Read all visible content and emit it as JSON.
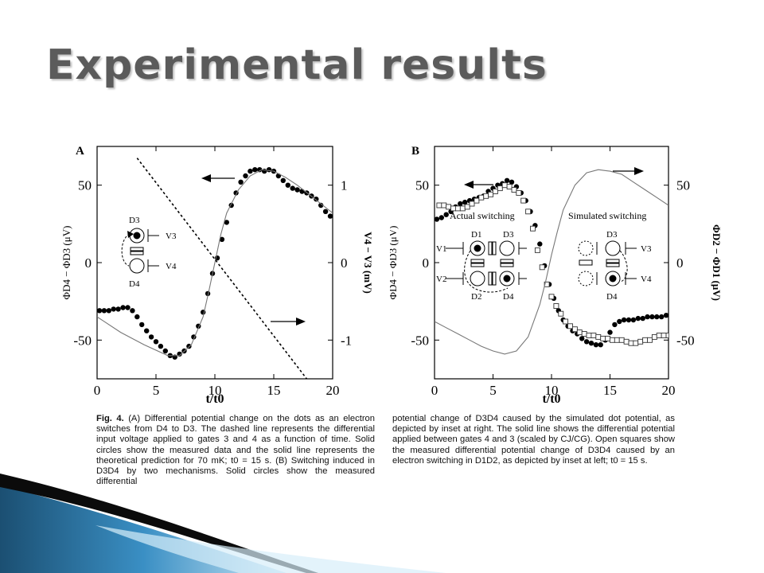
{
  "slide": {
    "title": "Experimental results"
  },
  "caption": {
    "left_label": "Fig. 4.",
    "left_text": " (A) Differential potential change on the dots as an electron switches from D4 to D3. The dashed line represents the differential input voltage applied to gates 3 and 4 as a function of time. Solid circles show the measured data and the solid line represents the theoretical prediction for 70 mK; t0 = 15 s. (B) Switching induced in D3D4 by two mechanisms. Solid circles show the measured differential",
    "right_text": "potential change of D3D4 caused by the simulated dot potential, as depicted by inset at right. The solid line shows the differential potential applied between gates 4 and 3 (scaled by CJ/CG). Open squares show the measured differential potential change of D3D4 caused by an electron switching in D1D2, as depicted by inset at left; t0 = 15 s."
  },
  "panels": {
    "a": {
      "letter": "A",
      "ylabel_left": "ΦD4 − ΦD3 (μV)",
      "ylabel_right": "V4 − V3 (mV)",
      "xlabel": "t/t0",
      "inset": {
        "d3": "D3",
        "d4": "D4",
        "v3": "V3",
        "v4": "V4"
      }
    },
    "b": {
      "letter": "B",
      "ylabel_left": "ΦD4 − ΦD3 (μV)",
      "ylabel_right": "ΦD2 − ΦD1 (μV)",
      "xlabel": "t/t0",
      "annotations": [
        "Actual switching",
        "Simulated switching"
      ],
      "inset_left": {
        "d1": "D1",
        "d2": "D2",
        "d3": "D3",
        "d4": "D4",
        "v1": "V1",
        "v2": "V2"
      },
      "inset_right": {
        "d3": "D3",
        "d4": "D4",
        "v3": "V3",
        "v4": "V4"
      }
    }
  },
  "chart_data": [
    {
      "panel": "A",
      "type": "scatter",
      "xlabel": "t/t0",
      "ylabel": "ΦD4 − ΦD3 (μV)",
      "y2label": "V4 − V3 (mV)",
      "xlim": [
        0,
        20
      ],
      "ylim": [
        -75,
        75
      ],
      "y2lim": [
        -1.5,
        1.5
      ],
      "x_ticks": [
        0,
        5,
        10,
        15,
        20
      ],
      "y_ticks": [
        -50,
        0,
        50
      ],
      "y2_ticks": [
        -1,
        0,
        1
      ],
      "series": [
        {
          "role": "measured",
          "style": "solid-circles",
          "x": [
            0.2,
            0.6,
            1.0,
            1.4,
            1.8,
            2.2,
            2.6,
            3.0,
            3.4,
            3.8,
            4.2,
            4.6,
            5.0,
            5.4,
            5.8,
            6.2,
            6.6,
            7.0,
            7.4,
            7.8,
            8.2,
            8.6,
            9.0,
            9.4,
            9.8,
            10.2,
            10.6,
            11.0,
            11.4,
            11.8,
            12.2,
            12.6,
            13.0,
            13.4,
            13.8,
            14.2,
            14.6,
            15.0,
            15.4,
            15.8,
            16.2,
            16.6,
            17.0,
            17.4,
            17.8,
            18.2,
            18.6,
            19.0,
            19.4,
            19.8
          ],
          "y": [
            -31,
            -31,
            -31,
            -30,
            -30,
            -29,
            -29,
            -31,
            -35,
            -40,
            -44,
            -48,
            -51,
            -54,
            -57,
            -60,
            -61,
            -59,
            -57,
            -54,
            -48,
            -41,
            -32,
            -20,
            -7,
            3,
            15,
            26,
            37,
            45,
            52,
            56,
            59,
            60,
            60,
            59,
            60,
            59,
            56,
            53,
            50,
            48,
            47,
            46,
            45,
            43,
            41,
            37,
            33,
            30
          ]
        },
        {
          "role": "theory",
          "style": "solid-line",
          "x": [
            0,
            2,
            4,
            6,
            7,
            8,
            9,
            9.5,
            10,
            10.5,
            11,
            12,
            13,
            14,
            15,
            16,
            17,
            18,
            19,
            20
          ],
          "y": [
            -35,
            -45,
            -53,
            -60,
            -60,
            -53,
            -35,
            -18,
            0,
            18,
            32,
            47,
            56,
            60,
            59,
            55,
            50,
            44,
            38,
            32
          ]
        },
        {
          "role": "input voltage (right axis)",
          "style": "dashed-line",
          "axis": "y2",
          "x": [
            3.4,
            17.8
          ],
          "y2": [
            1.35,
            -1.5
          ]
        }
      ]
    },
    {
      "panel": "B",
      "type": "scatter",
      "xlabel": "t/t0",
      "ylabel": "ΦD4 − ΦD3 (μV)",
      "y2label": "ΦD2 − ΦD1 (μV)",
      "xlim": [
        0,
        20
      ],
      "ylim": [
        -75,
        75
      ],
      "y2lim": [
        -75,
        75
      ],
      "x_ticks": [
        0,
        5,
        10,
        15,
        20
      ],
      "y_ticks": [
        -50,
        0,
        50
      ],
      "y2_ticks": [
        -50,
        0,
        50
      ],
      "series": [
        {
          "role": "simulated dot potential",
          "style": "solid-circles",
          "x": [
            0.2,
            0.6,
            1.0,
            1.4,
            1.8,
            2.2,
            2.6,
            3.0,
            3.4,
            3.8,
            4.2,
            4.6,
            5.0,
            5.4,
            5.8,
            6.2,
            6.6,
            7.0,
            7.4,
            7.8,
            8.2,
            8.6,
            9.0,
            9.4,
            9.8,
            10.2,
            10.6,
            11.0,
            11.4,
            11.8,
            12.2,
            12.6,
            13.0,
            13.4,
            13.8,
            14.2,
            14.6,
            15.0,
            15.4,
            15.8,
            16.2,
            16.6,
            17.0,
            17.4,
            17.8,
            18.2,
            18.6,
            19.0,
            19.4,
            19.8
          ],
          "y": [
            28,
            29,
            31,
            33,
            36,
            38,
            39,
            40,
            41,
            42,
            43,
            46,
            48,
            50,
            51,
            53,
            52,
            49,
            45,
            40,
            33,
            24,
            12,
            -2,
            -14,
            -23,
            -31,
            -37,
            -41,
            -44,
            -46,
            -49,
            -51,
            -52,
            -53,
            -53,
            -50,
            -45,
            -40,
            -38,
            -37,
            -37,
            -37,
            -36,
            -36,
            -35,
            -35,
            -35,
            -35,
            -34
          ]
        },
        {
          "role": "actual switching",
          "style": "open-squares",
          "x": [
            0.4,
            0.8,
            1.2,
            1.6,
            2.0,
            2.4,
            2.8,
            3.2,
            3.6,
            4.0,
            4.4,
            4.8,
            5.2,
            5.6,
            6.0,
            6.4,
            6.8,
            7.2,
            7.6,
            8.0,
            8.4,
            8.8,
            9.2,
            9.6,
            10.0,
            10.4,
            10.8,
            11.2,
            11.6,
            12.0,
            12.4,
            12.8,
            13.2,
            13.6,
            14.0,
            14.4,
            14.8,
            15.2,
            15.6,
            16.0,
            16.4,
            16.8,
            17.2,
            17.6,
            18.0,
            18.4,
            18.8,
            19.2,
            19.6,
            20.0
          ],
          "y": [
            37,
            37,
            36,
            35,
            35,
            35,
            36,
            38,
            40,
            42,
            43,
            44,
            46,
            48,
            50,
            49,
            47,
            45,
            40,
            33,
            22,
            8,
            -3,
            -14,
            -22,
            -28,
            -33,
            -38,
            -41,
            -43,
            -45,
            -46,
            -47,
            -47,
            -48,
            -49,
            -49,
            -50,
            -50,
            -50,
            -51,
            -52,
            -52,
            -51,
            -50,
            -50,
            -48,
            -47,
            -47,
            -47
          ]
        },
        {
          "role": "applied gate potential (right axis)",
          "style": "solid-line",
          "axis": "y2",
          "x": [
            0,
            1,
            2,
            3,
            4,
            5,
            6,
            7,
            8,
            9,
            9.5,
            10,
            10.5,
            11,
            12,
            13,
            14,
            15,
            16,
            17,
            18,
            19,
            20
          ],
          "y2": [
            -38,
            -42,
            -46,
            -50,
            -54,
            -57,
            -59,
            -57,
            -48,
            -27,
            -12,
            5,
            20,
            34,
            50,
            58,
            60,
            59,
            57,
            52,
            47,
            42,
            37
          ]
        }
      ]
    }
  ]
}
